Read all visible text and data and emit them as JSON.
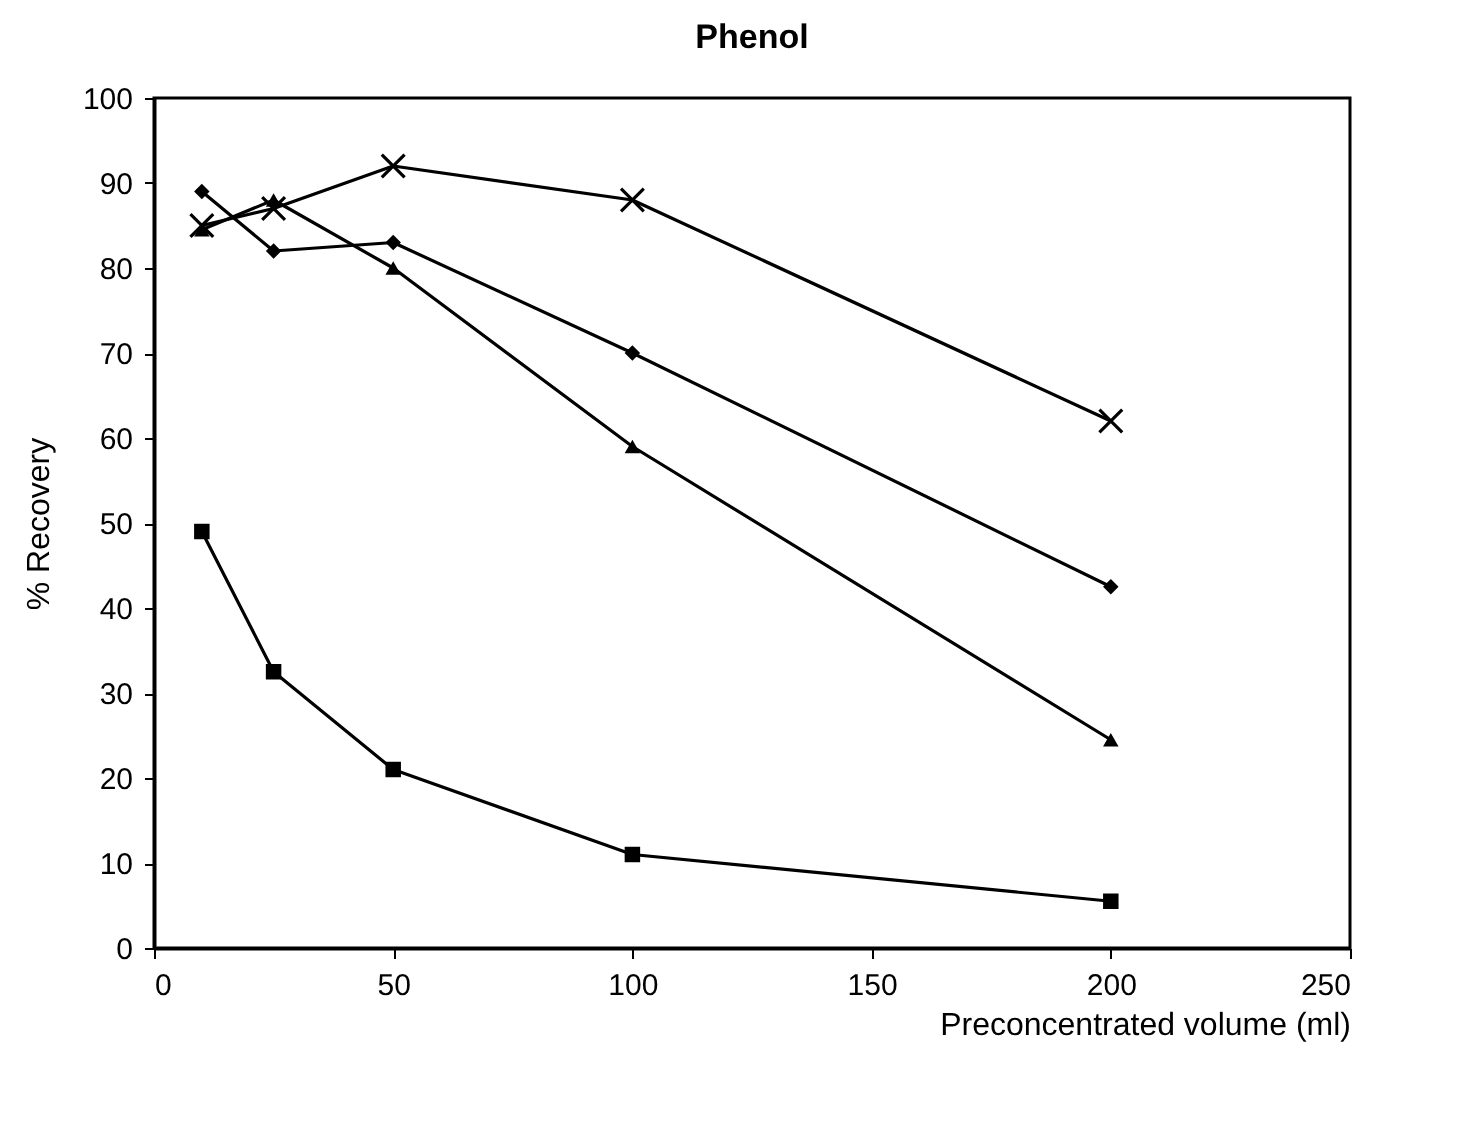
{
  "chart_data": {
    "type": "line",
    "title": "Phenol",
    "xlabel": "Preconcentrated volume (ml)",
    "ylabel": "% Recovery",
    "x": [
      10,
      25,
      50,
      100,
      200
    ],
    "series": [
      {
        "color": "#000000",
        "marker": "diamond",
        "values": [
          89,
          82,
          83,
          70,
          42.5
        ]
      },
      {
        "color": "#000000",
        "marker": "square",
        "values": [
          49,
          32.5,
          21,
          11,
          5.5
        ]
      },
      {
        "color": "#000000",
        "marker": "triangle",
        "values": [
          84.5,
          88,
          80,
          59,
          24.5
        ]
      },
      {
        "color": "#000000",
        "marker": "cross",
        "values": [
          85,
          87,
          92,
          88,
          62
        ]
      }
    ],
    "xlim": [
      0,
      250
    ],
    "xticks": [
      0,
      50,
      100,
      150,
      200,
      250
    ],
    "ylim": [
      0,
      100
    ],
    "yticks": [
      0,
      10,
      20,
      30,
      40,
      50,
      60,
      70,
      80,
      90,
      100
    ],
    "grid": false,
    "line_style": "solid"
  }
}
